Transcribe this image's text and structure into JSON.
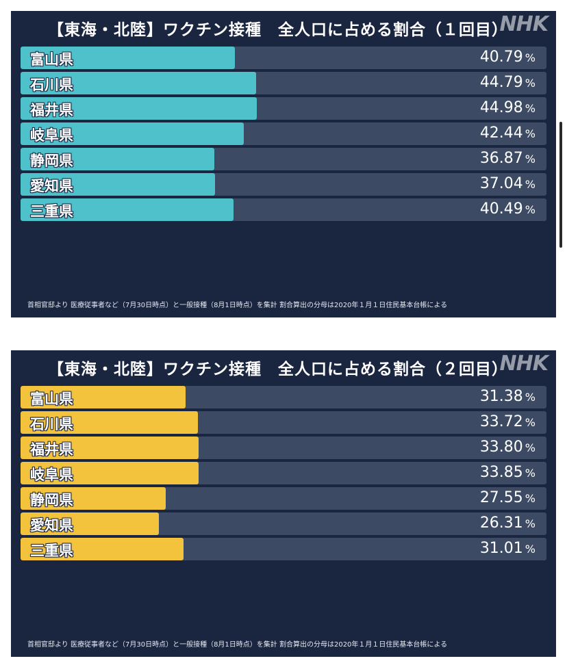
{
  "logo": "NHK",
  "percent_sign": "%",
  "colors": {
    "bar_first_dose": "#4fc1cb",
    "bar_second_dose": "#f3c33e"
  },
  "chart_data": [
    {
      "type": "bar",
      "orientation": "horizontal",
      "title": "【東海・北陸】ワクチン接種　全人口に占める割合（１回目）",
      "categories": [
        "富山県",
        "石川県",
        "福井県",
        "岐阜県",
        "静岡県",
        "愛知県",
        "三重県"
      ],
      "values": [
        40.79,
        44.79,
        44.98,
        42.44,
        36.87,
        37.04,
        40.49
      ],
      "value_labels": [
        "40.79",
        "44.79",
        "44.98",
        "42.44",
        "36.87",
        "37.04",
        "40.49"
      ],
      "unit": "%",
      "xlim": [
        0,
        100
      ],
      "source": "首相官邸より 医療従事者など（7月30日時点）と一般接種（8月1日時点）を集計 割合算出の分母は2020年１月１日住民基本台帳による"
    },
    {
      "type": "bar",
      "orientation": "horizontal",
      "title": "【東海・北陸】ワクチン接種　全人口に占める割合（２回目）",
      "categories": [
        "富山県",
        "石川県",
        "福井県",
        "岐阜県",
        "静岡県",
        "愛知県",
        "三重県"
      ],
      "values": [
        31.38,
        33.72,
        33.8,
        33.85,
        27.55,
        26.31,
        31.01
      ],
      "value_labels": [
        "31.38",
        "33.72",
        "33.80",
        "33.85",
        "27.55",
        "26.31",
        "31.01"
      ],
      "unit": "%",
      "xlim": [
        0,
        100
      ],
      "source": "首相官邸より 医療従事者など（7月30日時点）と一般接種（8月1日時点）を集計 割合算出の分母は2020年１月１日住民基本台帳による"
    }
  ]
}
